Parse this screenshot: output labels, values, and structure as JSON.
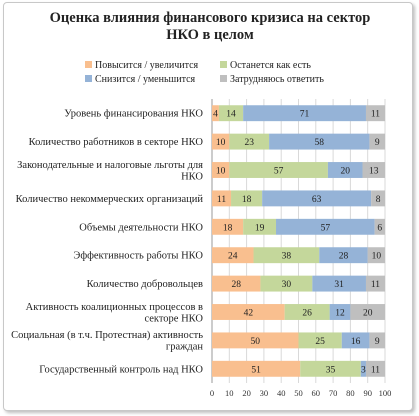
{
  "chart_data": {
    "type": "bar",
    "orientation": "horizontal",
    "stacked": true,
    "title_lines": [
      "Оценка влияния финансового кризиса на сектор",
      "НКО в целом"
    ],
    "legend_position": "top",
    "series": [
      {
        "name": "Повысится / увеличится",
        "color": "#f9bf8f",
        "values": [
          4,
          10,
          10,
          11,
          18,
          24,
          28,
          42,
          50,
          51
        ]
      },
      {
        "name": "Останется как есть",
        "color": "#c4d79b",
        "values": [
          14,
          23,
          57,
          18,
          19,
          38,
          30,
          26,
          25,
          35
        ]
      },
      {
        "name": "Снизится / уменьшится",
        "color": "#95b3d7",
        "values": [
          71,
          58,
          20,
          63,
          57,
          28,
          31,
          12,
          16,
          3
        ]
      },
      {
        "name": "Затрудняюсь ответить",
        "color": "#bfbfbf",
        "values": [
          11,
          9,
          13,
          8,
          6,
          10,
          11,
          20,
          9,
          11
        ]
      }
    ],
    "categories": [
      [
        "Уровень финансирования НКО"
      ],
      [
        "Количество работников в секторе НКО"
      ],
      [
        "Законодательные и налоговые льготы для",
        "НКО"
      ],
      [
        "Количество некоммерческих организаций"
      ],
      [
        "Объемы деятельности НКО"
      ],
      [
        "Эффективность работы НКО"
      ],
      [
        "Количество добровольцев"
      ],
      [
        "Активность коалиционных процессов в",
        "секторе НКО"
      ],
      [
        "Социальная (в т.ч. Протестная) активность",
        "граждан"
      ],
      [
        "Государственный контроль над НКО"
      ]
    ],
    "x_ticks": [
      "0",
      "10",
      "20",
      "30",
      "40",
      "50",
      "60",
      "70",
      "80",
      "90",
      "100"
    ],
    "xlim": [
      0,
      100
    ],
    "grid": true
  }
}
